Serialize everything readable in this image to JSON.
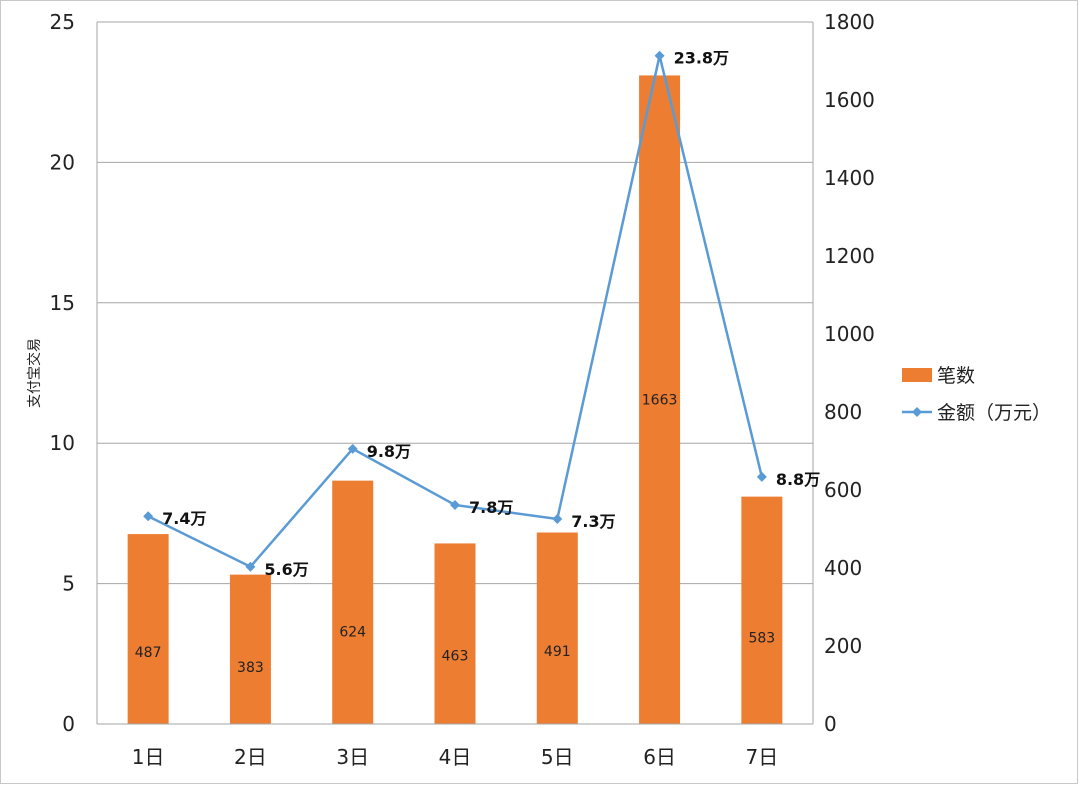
{
  "chart_data": {
    "type": "bar",
    "categories": [
      "1日",
      "2日",
      "3日",
      "4日",
      "5日",
      "6日",
      "7日"
    ],
    "left_axis": {
      "label": "支付宝交易",
      "ylim": [
        0,
        25
      ],
      "ticks": [
        "0",
        "5",
        "10",
        "15",
        "20",
        "25"
      ]
    },
    "right_axis": {
      "ylim": [
        0,
        1800
      ],
      "ticks": [
        "0",
        "200",
        "400",
        "600",
        "800",
        "1000",
        "1200",
        "1400",
        "1600",
        "1800"
      ]
    },
    "series": [
      {
        "name": "笔数",
        "type": "bar",
        "axis": "right",
        "color": "#ED7D31",
        "values": [
          487,
          383,
          624,
          463,
          491,
          1663,
          583
        ],
        "labels": [
          "487",
          "383",
          "624",
          "463",
          "491",
          "1663",
          "583"
        ]
      },
      {
        "name": "金额（万元）",
        "type": "line",
        "axis": "left",
        "color": "#5B9BD5",
        "values": [
          7.4,
          5.6,
          9.8,
          7.8,
          7.3,
          23.8,
          8.8
        ],
        "labels": [
          "7.4万",
          "5.6万",
          "9.8万",
          "7.8万",
          "7.3万",
          "23.8万",
          "8.8万"
        ]
      }
    ],
    "grid": true,
    "legend_position": "right"
  }
}
